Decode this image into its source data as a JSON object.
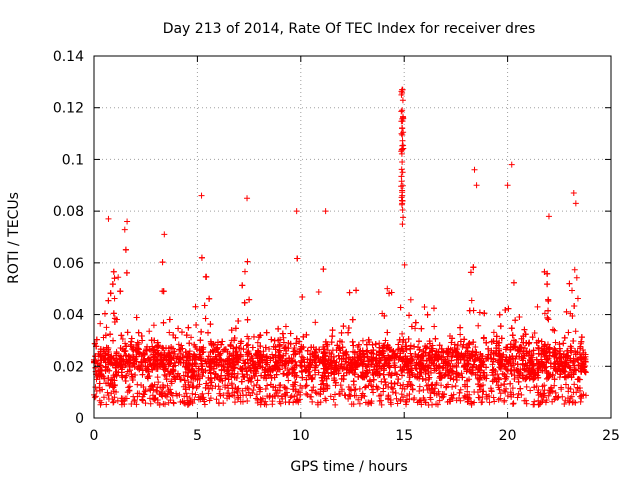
{
  "chart_data": {
    "type": "scatter",
    "title": "Day 213 of 2014, Rate Of TEC Index for receiver dres",
    "xlabel": "GPS time / hours",
    "ylabel": "ROTI / TECUs",
    "xlim": [
      0,
      25
    ],
    "ylim": [
      0,
      0.14
    ],
    "xticks": [
      0,
      5,
      10,
      15,
      20,
      25
    ],
    "xtick_labels": [
      "0",
      "5",
      "10",
      "15",
      "20",
      "25"
    ],
    "yticks": [
      0,
      0.02,
      0.04,
      0.06,
      0.08,
      0.1,
      0.12,
      0.14
    ],
    "ytick_labels": [
      "0",
      "0.02",
      "0.04",
      "0.06",
      "0.08",
      "0.1",
      "0.12",
      "0.14"
    ],
    "grid": true,
    "marker": "+",
    "marker_color": "#ff0000",
    "x_range_of_data": [
      0,
      23.8
    ],
    "series": [
      {
        "name": "ROTI",
        "note": "dense cloud of several thousand points; highlighted outliers listed",
        "baseline_band": [
          0.008,
          0.04
        ],
        "outliers": [
          {
            "x": 0.7,
            "y": 0.077
          },
          {
            "x": 1.6,
            "y": 0.076
          },
          {
            "x": 3.4,
            "y": 0.071
          },
          {
            "x": 5.2,
            "y": 0.086
          },
          {
            "x": 7.4,
            "y": 0.085
          },
          {
            "x": 9.8,
            "y": 0.08
          },
          {
            "x": 11.2,
            "y": 0.08
          },
          {
            "x": 14.9,
            "y": 0.127
          },
          {
            "x": 14.9,
            "y": 0.119
          },
          {
            "x": 14.9,
            "y": 0.112
          },
          {
            "x": 14.9,
            "y": 0.104
          },
          {
            "x": 14.9,
            "y": 0.099
          },
          {
            "x": 14.9,
            "y": 0.088
          },
          {
            "x": 14.9,
            "y": 0.083
          },
          {
            "x": 18.4,
            "y": 0.096
          },
          {
            "x": 18.5,
            "y": 0.09
          },
          {
            "x": 20.2,
            "y": 0.098
          },
          {
            "x": 20.0,
            "y": 0.09
          },
          {
            "x": 22.0,
            "y": 0.078
          },
          {
            "x": 23.2,
            "y": 0.087
          },
          {
            "x": 23.3,
            "y": 0.083
          }
        ]
      }
    ]
  }
}
